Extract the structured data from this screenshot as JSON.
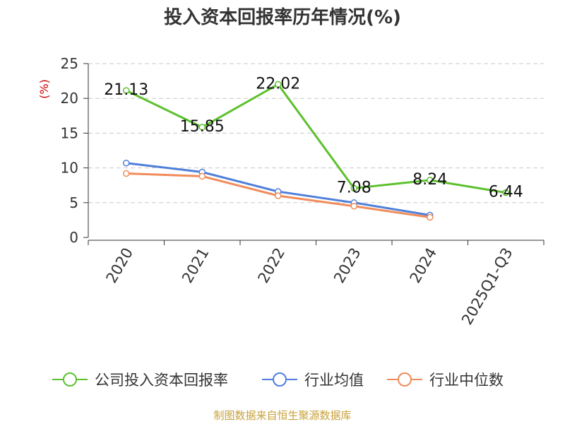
{
  "title": "投入资本回报率历年情况(%)",
  "source": "制图数据来自恒生聚源数据库",
  "colors": {
    "company": "#5cc12e",
    "industry_avg": "#4f7fd9",
    "industry_median": "#f08c5a",
    "ylabel": "#cc0000",
    "grid": "#c8c8c8",
    "axis": "#333333"
  },
  "chart_data": {
    "type": "line",
    "title": "投入资本回报率历年情况(%)",
    "ylabel": "(%)",
    "xlabel": "",
    "ylim": [
      0,
      25
    ],
    "yticks": [
      0,
      5,
      10,
      15,
      20,
      25
    ],
    "grid": true,
    "legend_position": "bottom",
    "categories": [
      "2020",
      "2021",
      "2022",
      "2023",
      "2024",
      "2025Q1-Q3"
    ],
    "series": [
      {
        "name": "公司投入资本回报率",
        "color": "#5cc12e",
        "values": [
          21.13,
          15.85,
          22.02,
          7.08,
          8.24,
          6.44
        ],
        "labels": [
          "21.13",
          "15.85",
          "22.02",
          "7.08",
          "8.24",
          "6.44"
        ]
      },
      {
        "name": "行业均值",
        "color": "#4f7fd9",
        "values": [
          10.7,
          9.4,
          6.6,
          5.0,
          3.2,
          null
        ]
      },
      {
        "name": "行业中位数",
        "color": "#f08c5a",
        "values": [
          9.2,
          8.8,
          6.0,
          4.5,
          2.9,
          null
        ]
      }
    ]
  }
}
